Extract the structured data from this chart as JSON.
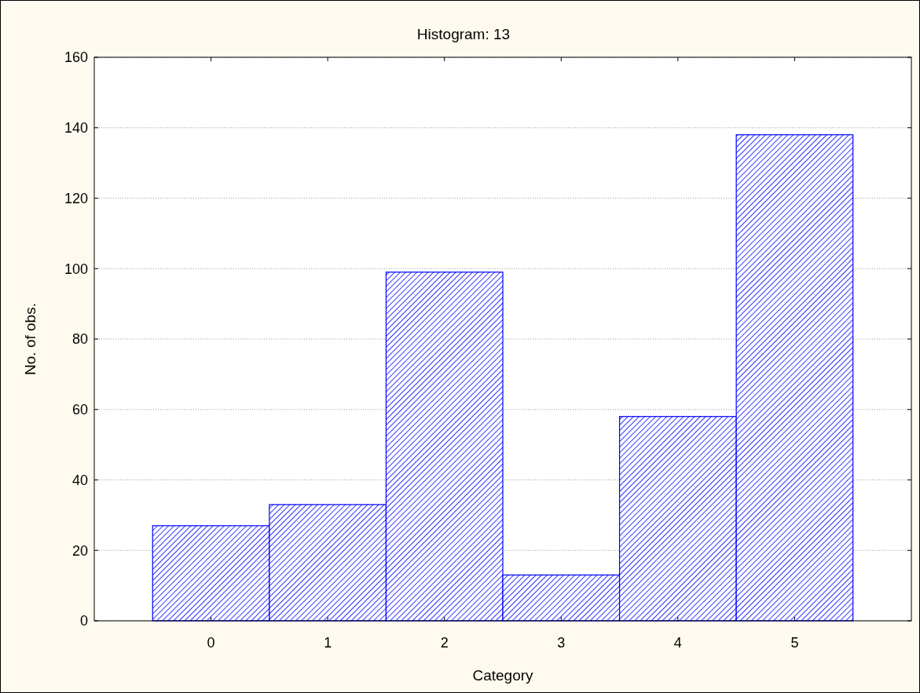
{
  "chart_data": {
    "type": "histogram",
    "title": "Histogram: 13",
    "xlabel": "Category",
    "ylabel": "No. of obs.",
    "bins": [
      -0.5,
      0.5,
      1.5,
      2.5,
      3.5,
      4.5,
      5.5
    ],
    "values": [
      27,
      33,
      99,
      13,
      58,
      138
    ],
    "color": "#0000ff",
    "xlim": [
      -1,
      6
    ],
    "xticks": [
      0,
      1,
      2,
      3,
      4,
      5
    ],
    "ylim": [
      0,
      160
    ],
    "yticks": [
      0,
      20,
      40,
      60,
      80,
      100,
      120,
      140,
      160
    ],
    "grid": "y"
  }
}
